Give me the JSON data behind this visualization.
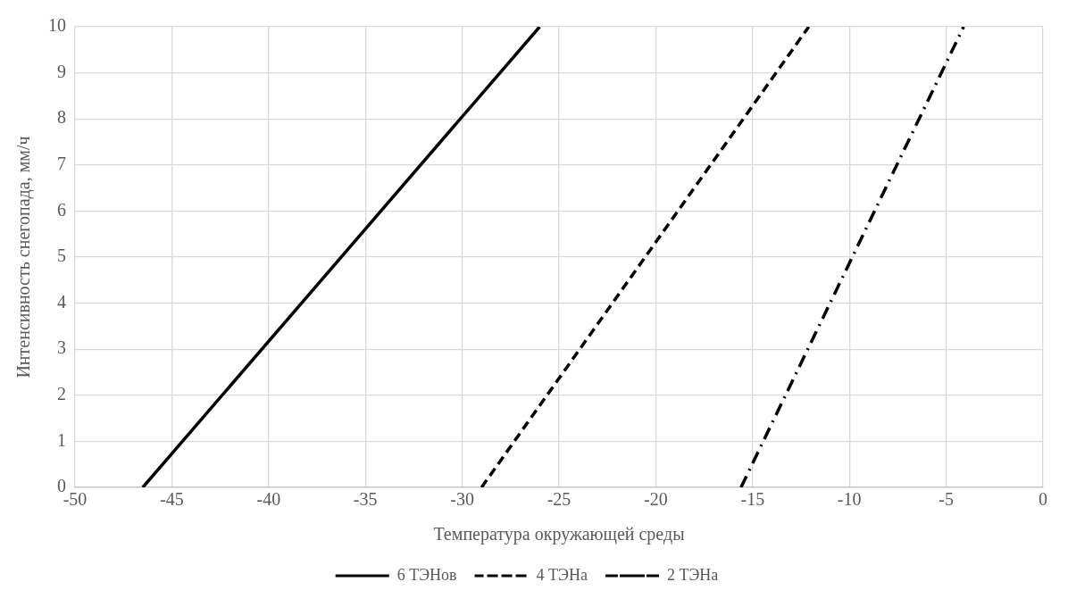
{
  "chart_data": {
    "type": "line",
    "xlabel": "Температура окружающей среды",
    "ylabel": "Интенсивность снегопада, мм/ч",
    "xlim": [
      -50,
      0
    ],
    "xticks": [
      -50,
      -45,
      -40,
      -35,
      -30,
      -25,
      -20,
      -15,
      -10,
      -5,
      0
    ],
    "ylim": [
      0,
      10
    ],
    "yticks": [
      0,
      1,
      2,
      3,
      4,
      5,
      6,
      7,
      8,
      9,
      10
    ],
    "grid": true,
    "legend": "bottom",
    "marker": "none",
    "series": [
      {
        "name": "6 ТЭНов",
        "color": "#000000",
        "x": [
          -46.5,
          -26.0
        ],
        "values": [
          0,
          10
        ],
        "line_style": "solid"
      },
      {
        "name": "4 ТЭНа",
        "color": "#000000",
        "x": [
          -29.0,
          -12.1
        ],
        "values": [
          0,
          10
        ],
        "line_style": "dashed"
      },
      {
        "name": "2 ТЭНа",
        "color": "#000000",
        "x": [
          -15.6,
          -4.1
        ],
        "values": [
          0,
          10
        ],
        "line_style": "dashdot"
      }
    ]
  }
}
